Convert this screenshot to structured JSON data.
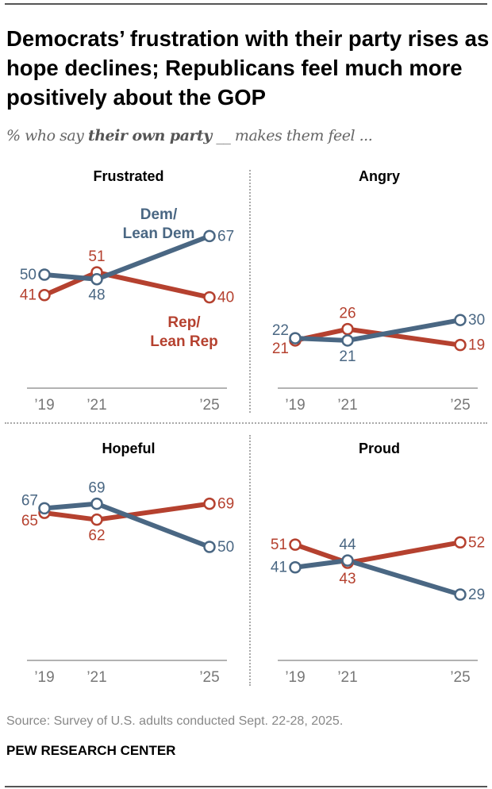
{
  "title": "Democrats’ frustration with their party rises as hope declines; Republicans feel much more positively about the GOP",
  "subtitle": {
    "pre": "% who say ",
    "bold": "their own party",
    "post": " __ makes them feel ..."
  },
  "colors": {
    "dem": "#4a6783",
    "rep": "#b5412f"
  },
  "chart_data": [
    {
      "type": "line",
      "title": "Frustrated",
      "categories": [
        "’19",
        "’21",
        "’25"
      ],
      "ylim": [
        0,
        100
      ],
      "series": [
        {
          "name": "Dem/ Lean Dem",
          "name_lines": [
            "Dem/",
            "Lean Dem"
          ],
          "values": [
            50,
            48,
            67
          ]
        },
        {
          "name": "Rep/ Lean Rep",
          "name_lines": [
            "Rep/",
            "Lean Rep"
          ],
          "values": [
            41,
            51,
            40
          ]
        }
      ]
    },
    {
      "type": "line",
      "title": "Angry",
      "categories": [
        "’19",
        "’21",
        "’25"
      ],
      "ylim": [
        0,
        100
      ],
      "series": [
        {
          "values": [
            22,
            21,
            30
          ]
        },
        {
          "values": [
            21,
            26,
            19
          ]
        }
      ]
    },
    {
      "type": "line",
      "title": "Hopeful",
      "categories": [
        "’19",
        "’21",
        "’25"
      ],
      "ylim": [
        0,
        100
      ],
      "series": [
        {
          "values": [
            67,
            69,
            50
          ]
        },
        {
          "values": [
            65,
            62,
            69
          ]
        }
      ]
    },
    {
      "type": "line",
      "title": "Proud",
      "categories": [
        "’19",
        "’21",
        "’25"
      ],
      "ylim": [
        0,
        100
      ],
      "series": [
        {
          "values": [
            41,
            44,
            29
          ]
        },
        {
          "values": [
            51,
            43,
            52
          ]
        }
      ]
    }
  ],
  "footer": {
    "source": "Source: Survey of U.S. adults conducted Sept. 22-28, 2025.",
    "brand": "PEW RESEARCH CENTER"
  }
}
